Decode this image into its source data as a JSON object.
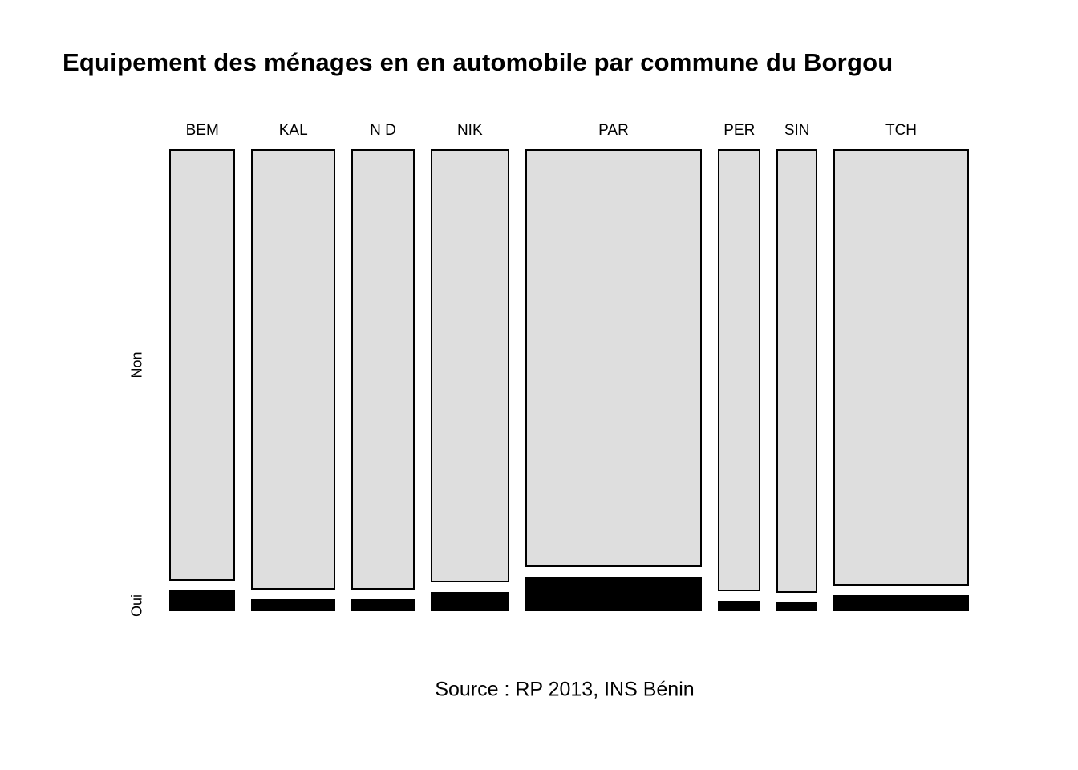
{
  "chart_data": {
    "type": "mosaic",
    "title": "Equipement des ménages en en automobile par commune du Borgou",
    "caption": "Source : RP 2013, INS Bénin",
    "x_categories": [
      "BEM",
      "KAL",
      "N D",
      "NIK",
      "PAR",
      "PER",
      "SIN",
      "TCH"
    ],
    "y_categories": [
      "Non",
      "Oui"
    ],
    "column_width_share": [
      0.096,
      0.122,
      0.092,
      0.114,
      0.257,
      0.062,
      0.059,
      0.197
    ],
    "oui_share": [
      0.046,
      0.027,
      0.027,
      0.043,
      0.076,
      0.023,
      0.02,
      0.035
    ],
    "non_color": "#dedede",
    "oui_color": "#000000",
    "border_color": "#000000",
    "legend": "none",
    "gridlines": false
  }
}
